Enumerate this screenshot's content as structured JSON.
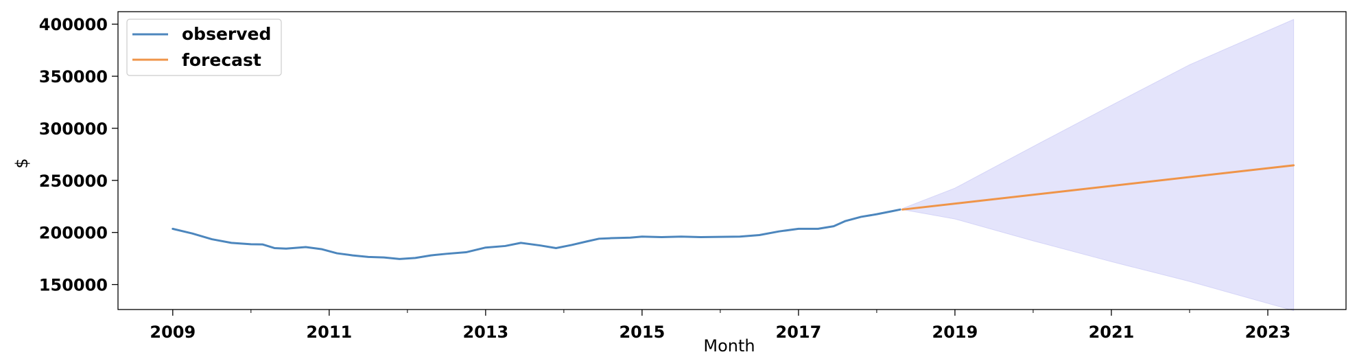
{
  "chart_data": {
    "type": "line",
    "title": "",
    "xlabel": "Month",
    "ylabel": "$",
    "xlim": [
      2008.3,
      2024.0
    ],
    "ylim": [
      126000,
      412000
    ],
    "x_ticks": [
      2009,
      2011,
      2013,
      2015,
      2017,
      2019,
      2021,
      2023
    ],
    "x_minor_ticks": [
      2010,
      2012,
      2014,
      2016,
      2018,
      2020,
      2022
    ],
    "y_ticks": [
      150000,
      200000,
      250000,
      300000,
      350000,
      400000
    ],
    "grid": false,
    "legend": {
      "placement": "top-left"
    },
    "series": [
      {
        "name": "observed",
        "color": "#4c86bd",
        "x": [
          2009.0,
          2009.25,
          2009.5,
          2009.75,
          2010.0,
          2010.15,
          2010.3,
          2010.45,
          2010.7,
          2010.9,
          2011.1,
          2011.3,
          2011.5,
          2011.7,
          2011.9,
          2012.1,
          2012.3,
          2012.5,
          2012.75,
          2013.0,
          2013.25,
          2013.45,
          2013.7,
          2013.9,
          2014.1,
          2014.3,
          2014.45,
          2014.6,
          2014.85,
          2015.0,
          2015.25,
          2015.5,
          2015.75,
          2016.0,
          2016.25,
          2016.5,
          2016.75,
          2017.0,
          2017.25,
          2017.45,
          2017.6,
          2017.8,
          2018.0,
          2018.2,
          2018.3
        ],
        "y": [
          203500,
          199000,
          193500,
          190000,
          188700,
          188500,
          185000,
          184500,
          186000,
          184000,
          180000,
          178000,
          176500,
          176000,
          174500,
          175500,
          178000,
          179500,
          181000,
          185500,
          187000,
          190000,
          187500,
          185000,
          188000,
          191500,
          194000,
          194500,
          195000,
          196000,
          195500,
          196000,
          195500,
          195800,
          196000,
          197500,
          201000,
          203500,
          203500,
          206000,
          211000,
          215000,
          217500,
          220500,
          222000
        ]
      },
      {
        "name": "forecast",
        "color": "#ef9448",
        "x": [
          2018.33,
          2023.33
        ],
        "y": [
          222000,
          264500
        ]
      }
    ],
    "confidence_band": {
      "color": "#e4e4fb",
      "x": [
        2018.33,
        2019.0,
        2020.0,
        2021.0,
        2022.0,
        2023.33
      ],
      "upper": [
        223000,
        242500,
        282500,
        322000,
        361000,
        404500
      ],
      "lower": [
        222000,
        213000,
        192000,
        172000,
        153000,
        125000
      ]
    }
  }
}
